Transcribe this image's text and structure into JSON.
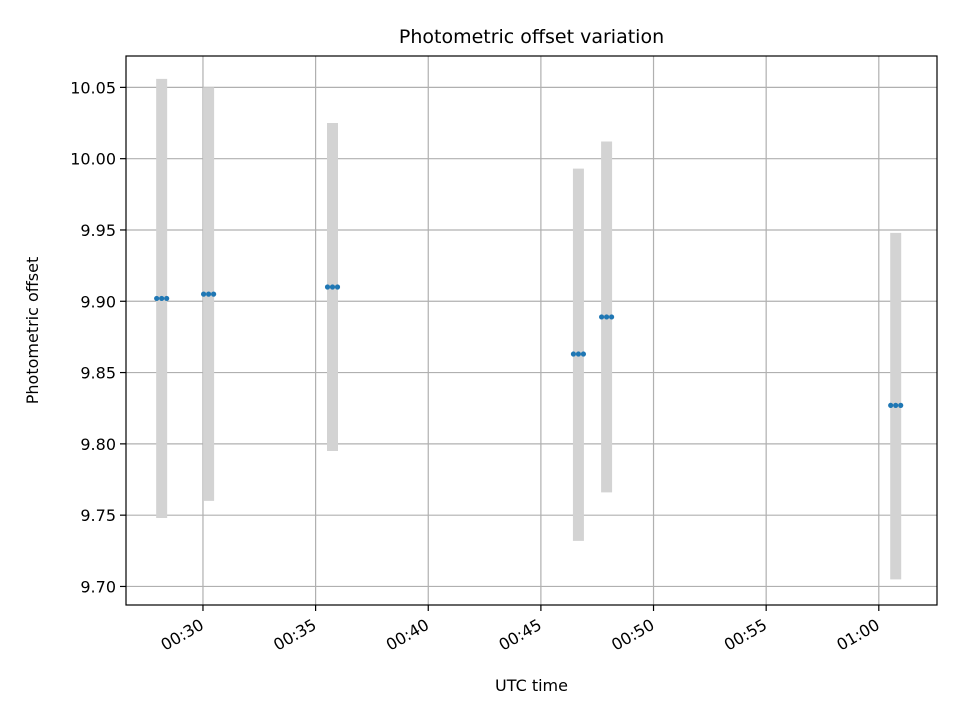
{
  "chart_data": {
    "type": "scatter",
    "title": "Photometric offset variation",
    "xlabel": "UTC time",
    "ylabel": "Photometric offset",
    "grid": true,
    "x_unit": "UTC time (HH:MM)",
    "xlim": [
      "00:26:35",
      "01:02:35"
    ],
    "ylim": [
      9.687,
      10.072
    ],
    "x_ticks": [
      "00:30",
      "00:35",
      "00:40",
      "00:45",
      "00:50",
      "00:55",
      "01:00"
    ],
    "y_ticks": [
      "9.70",
      "9.75",
      "9.80",
      "9.85",
      "9.90",
      "9.95",
      "10.00",
      "10.05"
    ],
    "colors": {
      "point": "#1f77b4",
      "errorbar": "#d3d3d3",
      "grid": "#b0b0b0"
    },
    "series": [
      {
        "points": [
          {
            "x": "00:28:10",
            "y": 9.902,
            "y_low": 9.748,
            "y_high": 10.056
          },
          {
            "x": "00:30:15",
            "y": 9.905,
            "y_low": 9.76,
            "y_high": 10.05
          },
          {
            "x": "00:35:45",
            "y": 9.91,
            "y_low": 9.795,
            "y_high": 10.025
          },
          {
            "x": "00:46:40",
            "y": 9.863,
            "y_low": 9.732,
            "y_high": 9.993
          },
          {
            "x": "00:47:55",
            "y": 9.889,
            "y_low": 9.766,
            "y_high": 10.012
          },
          {
            "x": "01:00:45",
            "y": 9.827,
            "y_low": 9.705,
            "y_high": 9.948
          }
        ]
      }
    ]
  }
}
